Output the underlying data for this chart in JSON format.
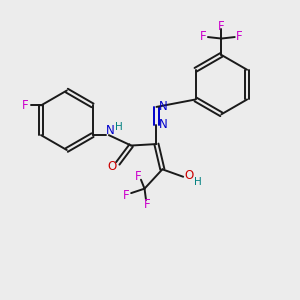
{
  "background_color": "#ececec",
  "bond_color": "#1a1a1a",
  "N_color": "#0000cc",
  "O_color": "#cc0000",
  "F_color": "#cc00cc",
  "H_color": "#008080",
  "figsize": [
    3.0,
    3.0
  ],
  "dpi": 100,
  "xlim": [
    0,
    10
  ],
  "ylim": [
    0,
    10
  ]
}
